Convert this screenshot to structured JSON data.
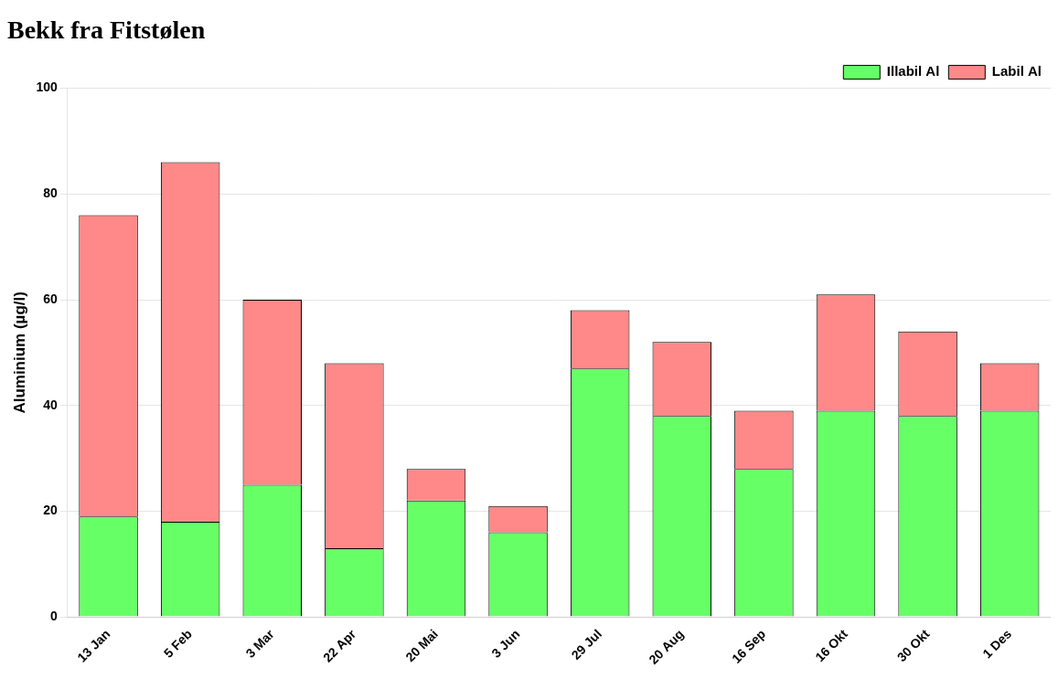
{
  "chart_data": {
    "type": "bar",
    "stacked": true,
    "title": "Bekk fra Fitstølen",
    "ylabel": "Aluminium (µg/l)",
    "categories": [
      "13 Jan",
      "5 Feb",
      "3 Mar",
      "22 Apr",
      "20 Mai",
      "3 Jun",
      "29 Jul",
      "20 Aug",
      "16 Sep",
      "16 Okt",
      "30 Okt",
      "1 Des"
    ],
    "series": [
      {
        "name": "Illabil Al",
        "color": "#66FF66",
        "values": [
          19,
          18,
          25,
          13,
          22,
          16,
          47,
          38,
          28,
          39,
          38,
          39
        ]
      },
      {
        "name": "Labil Al",
        "color": "#FF8888",
        "values": [
          57,
          68,
          35,
          35,
          6,
          5,
          11,
          14,
          11,
          22,
          16,
          9
        ]
      }
    ],
    "ylim": [
      0,
      100
    ],
    "yticks": [
      0,
      20,
      40,
      60,
      80,
      100
    ],
    "grid": true,
    "legend": "upper right"
  }
}
